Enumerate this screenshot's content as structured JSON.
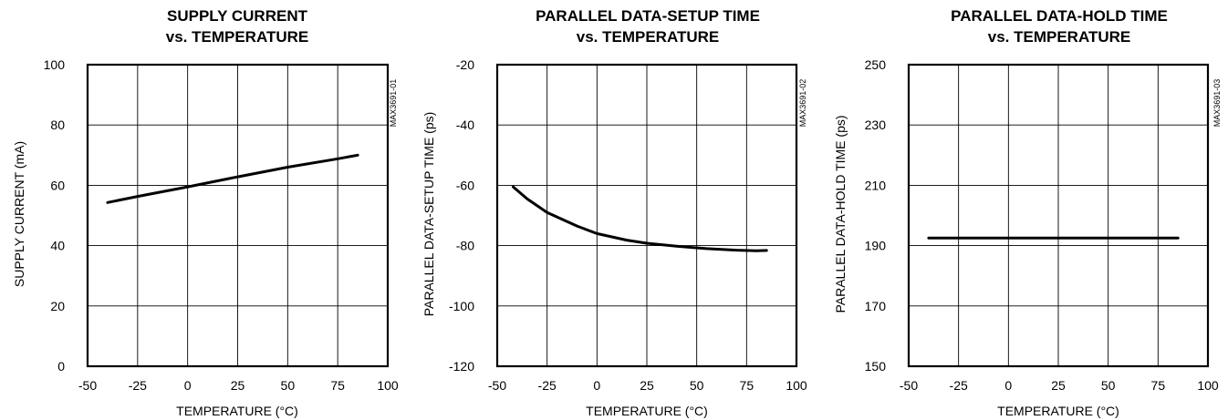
{
  "chart_data": [
    {
      "type": "line",
      "title": "SUPPLY CURRENT",
      "subtitle": "vs. TEMPERATURE",
      "xlabel": "TEMPERATURE (°C)",
      "ylabel": "SUPPLY CURRENT (mA)",
      "figure_code": "MAX3691-01",
      "xlim": [
        -50,
        100
      ],
      "ylim": [
        0,
        100
      ],
      "xticks": [
        -50,
        -25,
        0,
        25,
        50,
        75,
        100
      ],
      "yticks": [
        0,
        20,
        40,
        60,
        80,
        100
      ],
      "grid": true,
      "series": [
        {
          "x": [
            -40,
            -25,
            0,
            25,
            50,
            75,
            85
          ],
          "y": [
            54.3,
            56.3,
            59.5,
            62.8,
            66.0,
            68.8,
            70.0
          ]
        }
      ]
    },
    {
      "type": "line",
      "title": "PARALLEL DATA-SETUP TIME",
      "subtitle": "vs. TEMPERATURE",
      "xlabel": "TEMPERATURE (°C)",
      "ylabel": "PARALLEL DATA-SETUP TIME (ps)",
      "figure_code": "MAX3691-02",
      "xlim": [
        -50,
        100
      ],
      "ylim": [
        -120,
        -20
      ],
      "xticks": [
        -50,
        -25,
        0,
        25,
        50,
        75,
        100
      ],
      "yticks": [
        -120,
        -100,
        -80,
        -60,
        -40,
        -20
      ],
      "grid": true,
      "series": [
        {
          "x": [
            -42,
            -35,
            -25,
            -10,
            0,
            15,
            25,
            40,
            55,
            70,
            80,
            85
          ],
          "y": [
            -60.5,
            -64.5,
            -69.0,
            -73.5,
            -76.0,
            -78.2,
            -79.2,
            -80.2,
            -81.0,
            -81.5,
            -81.7,
            -81.6
          ]
        }
      ]
    },
    {
      "type": "line",
      "title": "PARALLEL DATA-HOLD TIME",
      "subtitle": "vs. TEMPERATURE",
      "xlabel": "TEMPERATURE (°C)",
      "ylabel": "PARALLEL DATA-HOLD TIME (ps)",
      "figure_code": "MAX3691-03",
      "xlim": [
        -50,
        100
      ],
      "ylim": [
        150,
        250
      ],
      "xticks": [
        -50,
        -25,
        0,
        25,
        50,
        75,
        100
      ],
      "yticks": [
        150,
        170,
        190,
        210,
        230,
        250
      ],
      "grid": true,
      "series": [
        {
          "x": [
            -40,
            85
          ],
          "y": [
            192.5,
            192.5
          ]
        }
      ]
    }
  ]
}
